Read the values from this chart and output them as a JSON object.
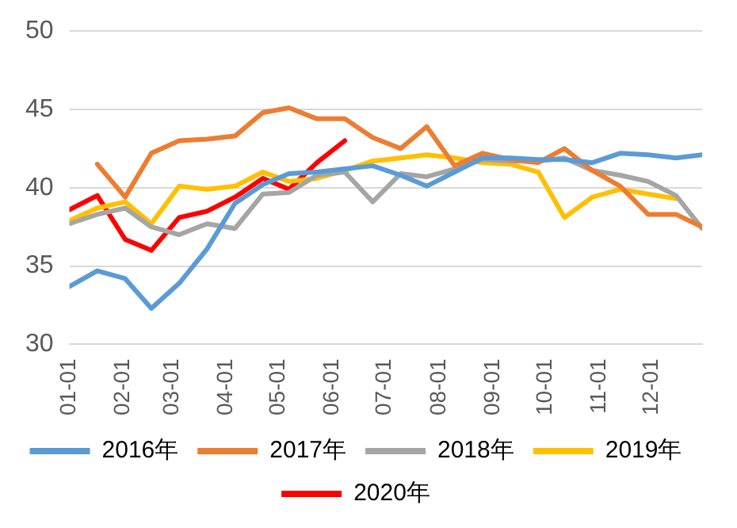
{
  "chart_data": {
    "type": "line",
    "x": [
      "--01-01",
      "--01-17",
      "--02-02",
      "--02-17",
      "--03-05",
      "--03-21",
      "--04-06",
      "--04-22",
      "--05-07",
      "--05-23",
      "--06-08",
      "--06-24",
      "--07-10",
      "--07-25",
      "--08-10",
      "--08-26",
      "--09-11",
      "--09-27",
      "--10-12",
      "--10-28",
      "--11-13",
      "--11-29",
      "--12-15",
      "--12-30"
    ],
    "series": [
      {
        "name": "2016年",
        "color": "#5b9bd5",
        "values": [
          33.7,
          34.7,
          34.2,
          32.3,
          33.9,
          36.1,
          39.0,
          40.2,
          40.9,
          41.0,
          41.2,
          41.4,
          40.8,
          40.1,
          41.0,
          41.9,
          41.9,
          41.8,
          41.8,
          41.6,
          42.2,
          42.1,
          41.9,
          42.1
        ]
      },
      {
        "name": "2017年",
        "color": "#ed7d31",
        "values": [
          null,
          41.5,
          39.4,
          42.2,
          43.0,
          43.1,
          43.3,
          44.8,
          45.1,
          44.4,
          44.4,
          43.2,
          42.5,
          43.9,
          41.4,
          42.2,
          41.8,
          41.6,
          42.5,
          41.1,
          40.1,
          38.3,
          38.3,
          37.5
        ]
      },
      {
        "name": "2018年",
        "color": "#a5a5a5",
        "values": [
          37.7,
          38.3,
          38.7,
          37.5,
          37.0,
          37.7,
          37.4,
          39.6,
          39.7,
          40.8,
          41.0,
          39.1,
          40.9,
          40.7,
          41.2,
          41.8,
          41.7,
          41.7,
          41.9,
          41.1,
          40.8,
          40.4,
          39.5,
          37.4
        ]
      },
      {
        "name": "2019年",
        "color": "#ffc000",
        "values": [
          37.9,
          38.7,
          39.1,
          37.7,
          40.1,
          39.9,
          40.1,
          41.0,
          40.4,
          40.6,
          41.1,
          41.7,
          41.9,
          42.1,
          41.9,
          41.6,
          41.5,
          41.0,
          38.1,
          39.4,
          39.9,
          39.6,
          39.3,
          null
        ]
      },
      {
        "name": "2020年",
        "color": "#ff0000",
        "values": [
          38.6,
          39.5,
          36.7,
          36.0,
          38.1,
          38.5,
          39.4,
          40.6,
          39.9,
          41.6,
          43.0,
          null,
          null,
          null,
          null,
          null,
          null,
          null,
          null,
          null,
          null,
          null,
          null,
          null
        ]
      }
    ],
    "xlim": [
      "--01-01",
      "--12-30"
    ],
    "xticks": [
      {
        "value": "--01-01",
        "label": "01-01"
      },
      {
        "value": "--02-01",
        "label": "02-01"
      },
      {
        "value": "--03-01",
        "label": "03-01"
      },
      {
        "value": "--04-01",
        "label": "04-01"
      },
      {
        "value": "--05-01",
        "label": "05-01"
      },
      {
        "value": "--06-01",
        "label": "06-01"
      },
      {
        "value": "--07-01",
        "label": "07-01"
      },
      {
        "value": "--08-01",
        "label": "08-01"
      },
      {
        "value": "--09-01",
        "label": "09-01"
      },
      {
        "value": "--10-01",
        "label": "10-01"
      },
      {
        "value": "--11-01",
        "label": "11-01"
      },
      {
        "value": "--12-01",
        "label": "12-01"
      }
    ],
    "ylim": [
      30,
      50
    ],
    "yticks": [
      30,
      35,
      40,
      45,
      50
    ],
    "grid": "y",
    "legend": "bottom",
    "marker": "none",
    "line_style": "solid"
  }
}
